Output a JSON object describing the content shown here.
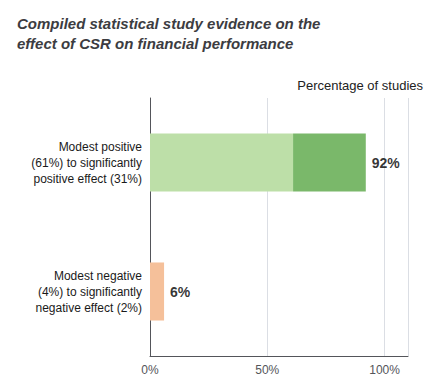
{
  "chart_data": {
    "type": "bar",
    "orientation": "horizontal",
    "stacked": true,
    "title": "Compiled statistical study evidence on the\neffect of CSR on financial performance",
    "subtitle": "Percentage of studies",
    "categories": [
      "Modest positive\n(61%) to significantly\npositive effect (31%)",
      "Modest negative\n(4%) to significantly\nnegative effect (2%)"
    ],
    "series": [
      {
        "values": [
          61,
          6
        ],
        "colors": [
          "#bddfa8",
          "#f5c09a"
        ]
      },
      {
        "values": [
          31,
          0
        ],
        "colors": [
          "#7ab86a",
          "#f5c09a"
        ]
      }
    ],
    "annotations": [
      "92%",
      "6%"
    ],
    "totals": [
      92,
      6
    ],
    "xlim": [
      0,
      110
    ],
    "xticks": [
      {
        "value": 0,
        "label": "0%"
      },
      {
        "value": 50,
        "label": "50%"
      },
      {
        "value": 100,
        "label": "100%"
      }
    ],
    "grid": true
  }
}
